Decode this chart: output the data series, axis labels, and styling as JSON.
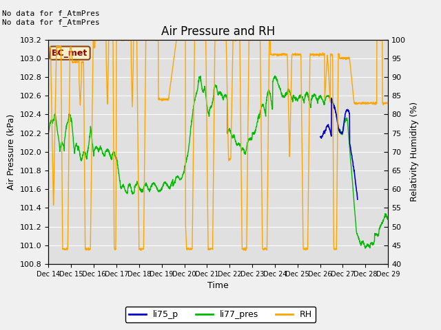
{
  "title": "Air Pressure and RH",
  "xlabel": "Time",
  "ylabel_left": "Air Pressure (kPa)",
  "ylabel_right": "Relativity Humidity (%)",
  "annotation_text": "No data for f_AtmPres\nNo data for f_AtmPres",
  "box_label": "BC_met",
  "ylim_left": [
    100.8,
    103.2
  ],
  "ylim_right": [
    40,
    100
  ],
  "yticks_left": [
    100.8,
    101.0,
    101.2,
    101.4,
    101.6,
    101.8,
    102.0,
    102.2,
    102.4,
    102.6,
    102.8,
    103.0,
    103.2
  ],
  "yticks_right": [
    40,
    45,
    50,
    55,
    60,
    65,
    70,
    75,
    80,
    85,
    90,
    95,
    100
  ],
  "xtick_labels": [
    "Dec 14",
    "Dec 15",
    "Dec 16",
    "Dec 17",
    "Dec 18",
    "Dec 19",
    "Dec 20",
    "Dec 21",
    "Dec 22",
    "Dec 23",
    "Dec 24",
    "Dec 25",
    "Dec 26",
    "Dec 27",
    "Dec 28",
    "Dec 29"
  ],
  "color_li75": "#0000cc",
  "color_li77": "#00bb00",
  "color_rh": "#ffa500",
  "legend_labels": [
    "li75_p",
    "li77_pres",
    "RH"
  ],
  "plot_bg_color": "#e0e0e0",
  "grid_color": "#ffffff",
  "fig_bg_color": "#f0f0f0",
  "fontsize_title": 12,
  "fontsize_labels": 9,
  "fontsize_ticks": 8,
  "fontsize_annotation": 8,
  "fontsize_boxlabel": 9
}
